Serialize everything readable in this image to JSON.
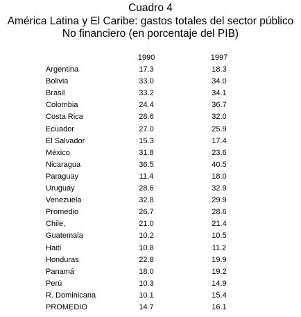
{
  "title": {
    "line1": "Cuadro 4",
    "line2": "América Latina y El Caribe: gastos totales del sector público",
    "line3": "No financiero (en porcentaje del PIB)"
  },
  "table": {
    "columns": [
      "1990",
      "1997"
    ],
    "rows": [
      {
        "country": "Argentina",
        "v1990": "17.3",
        "v1997": "18.3"
      },
      {
        "country": "Bolivia",
        "v1990": "33.0",
        "v1997": "34.0"
      },
      {
        "country": "Brasil",
        "v1990": "33.2",
        "v1997": "34.1"
      },
      {
        "country": "Colombia",
        "v1990": "24.4",
        "v1997": "36.7"
      },
      {
        "country": "Costa Rica",
        "v1990": "28.6",
        "v1997": "32.0"
      },
      {
        "country": "Ecuador",
        "v1990": "27.0",
        "v1997": "25.9"
      },
      {
        "country": "El Salvador",
        "v1990": "15.3",
        "v1997": "17.4"
      },
      {
        "country": "México",
        "v1990": "31.8",
        "v1997": "23.6"
      },
      {
        "country": "Nicaragua",
        "v1990": "36.5",
        "v1997": "40.5"
      },
      {
        "country": "Paraguay",
        "v1990": "11.4",
        "v1997": "18.0"
      },
      {
        "country": "Uruguay",
        "v1990": "28.6",
        "v1997": "32.9"
      },
      {
        "country": "Venezuela",
        "v1990": "32.8",
        "v1997": "29.9"
      },
      {
        "country": "Promedio",
        "v1990": "26.7",
        "v1997": "28.6"
      },
      {
        "country": "Chile,",
        "v1990": "21.0",
        "v1997": "21.4"
      },
      {
        "country": "Guatemala",
        "v1990": "10.2",
        "v1997": "10.5"
      },
      {
        "country": "Haití",
        "v1990": "10.8",
        "v1997": "11.2"
      },
      {
        "country": "Honduras",
        "v1990": "22.8",
        "v1997": "19.9"
      },
      {
        "country": "Panamá",
        "v1990": "18.0",
        "v1997": "19.2"
      },
      {
        "country": "Perú",
        "v1990": "10.3",
        "v1997": "14.9"
      },
      {
        "country": "R. Dominicana",
        "v1990": "10.1",
        "v1997": "15.4"
      },
      {
        "country": "PROMEDIO",
        "v1990": "14.7",
        "v1997": "16.1"
      }
    ]
  }
}
